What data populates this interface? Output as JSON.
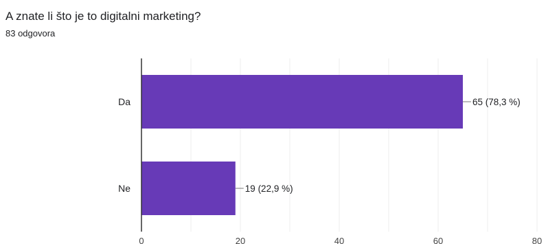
{
  "question": {
    "title": "A znate li što je to digitalni marketing?",
    "responses": "83 odgovora"
  },
  "chart_data": {
    "type": "bar",
    "orientation": "horizontal",
    "categories": [
      "Da",
      "Ne"
    ],
    "values": [
      65,
      19
    ],
    "data_labels": [
      "65 (78,3 %)",
      "19 (22,9 %)"
    ],
    "xlim": [
      0,
      80
    ],
    "xticks": [
      0,
      20,
      40,
      60,
      80
    ],
    "grid": true,
    "bar_color": "#673ab7"
  }
}
